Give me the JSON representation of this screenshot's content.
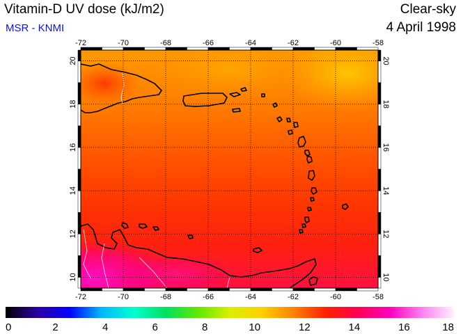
{
  "header": {
    "title": "Vitamin-D UV dose (kJ/m2)",
    "source": "MSR - KNMI",
    "condition": "Clear-sky",
    "date": "4 April 1998"
  },
  "map": {
    "lon_range": [
      -72,
      -58
    ],
    "lat_range": [
      9.5,
      20.5
    ],
    "lon_ticks": [
      "-72",
      "-70",
      "-68",
      "-66",
      "-64",
      "-62",
      "-60",
      "-58"
    ],
    "lat_ticks": [
      "10",
      "12",
      "14",
      "16",
      "18",
      "20"
    ],
    "grid": "dotted lines every 2 degrees"
  },
  "colorbar": {
    "range": [
      0,
      18
    ],
    "tick_labels": [
      "0",
      "2",
      "4",
      "6",
      "8",
      "10",
      "12",
      "14",
      "16",
      "18"
    ],
    "colors": [
      "#000000",
      "#2c00a0",
      "#0000ff",
      "#00b8ff",
      "#00ffd0",
      "#00e060",
      "#60e800",
      "#d8f000",
      "#ffd000",
      "#ff8000",
      "#ff2000",
      "#ff0050",
      "#ff00c0",
      "#ff80f0",
      "#fff0ff"
    ]
  },
  "colors": {
    "title": "#000000",
    "source": "#1010d0",
    "coastline": "#000000",
    "borders": "#ffffff"
  }
}
